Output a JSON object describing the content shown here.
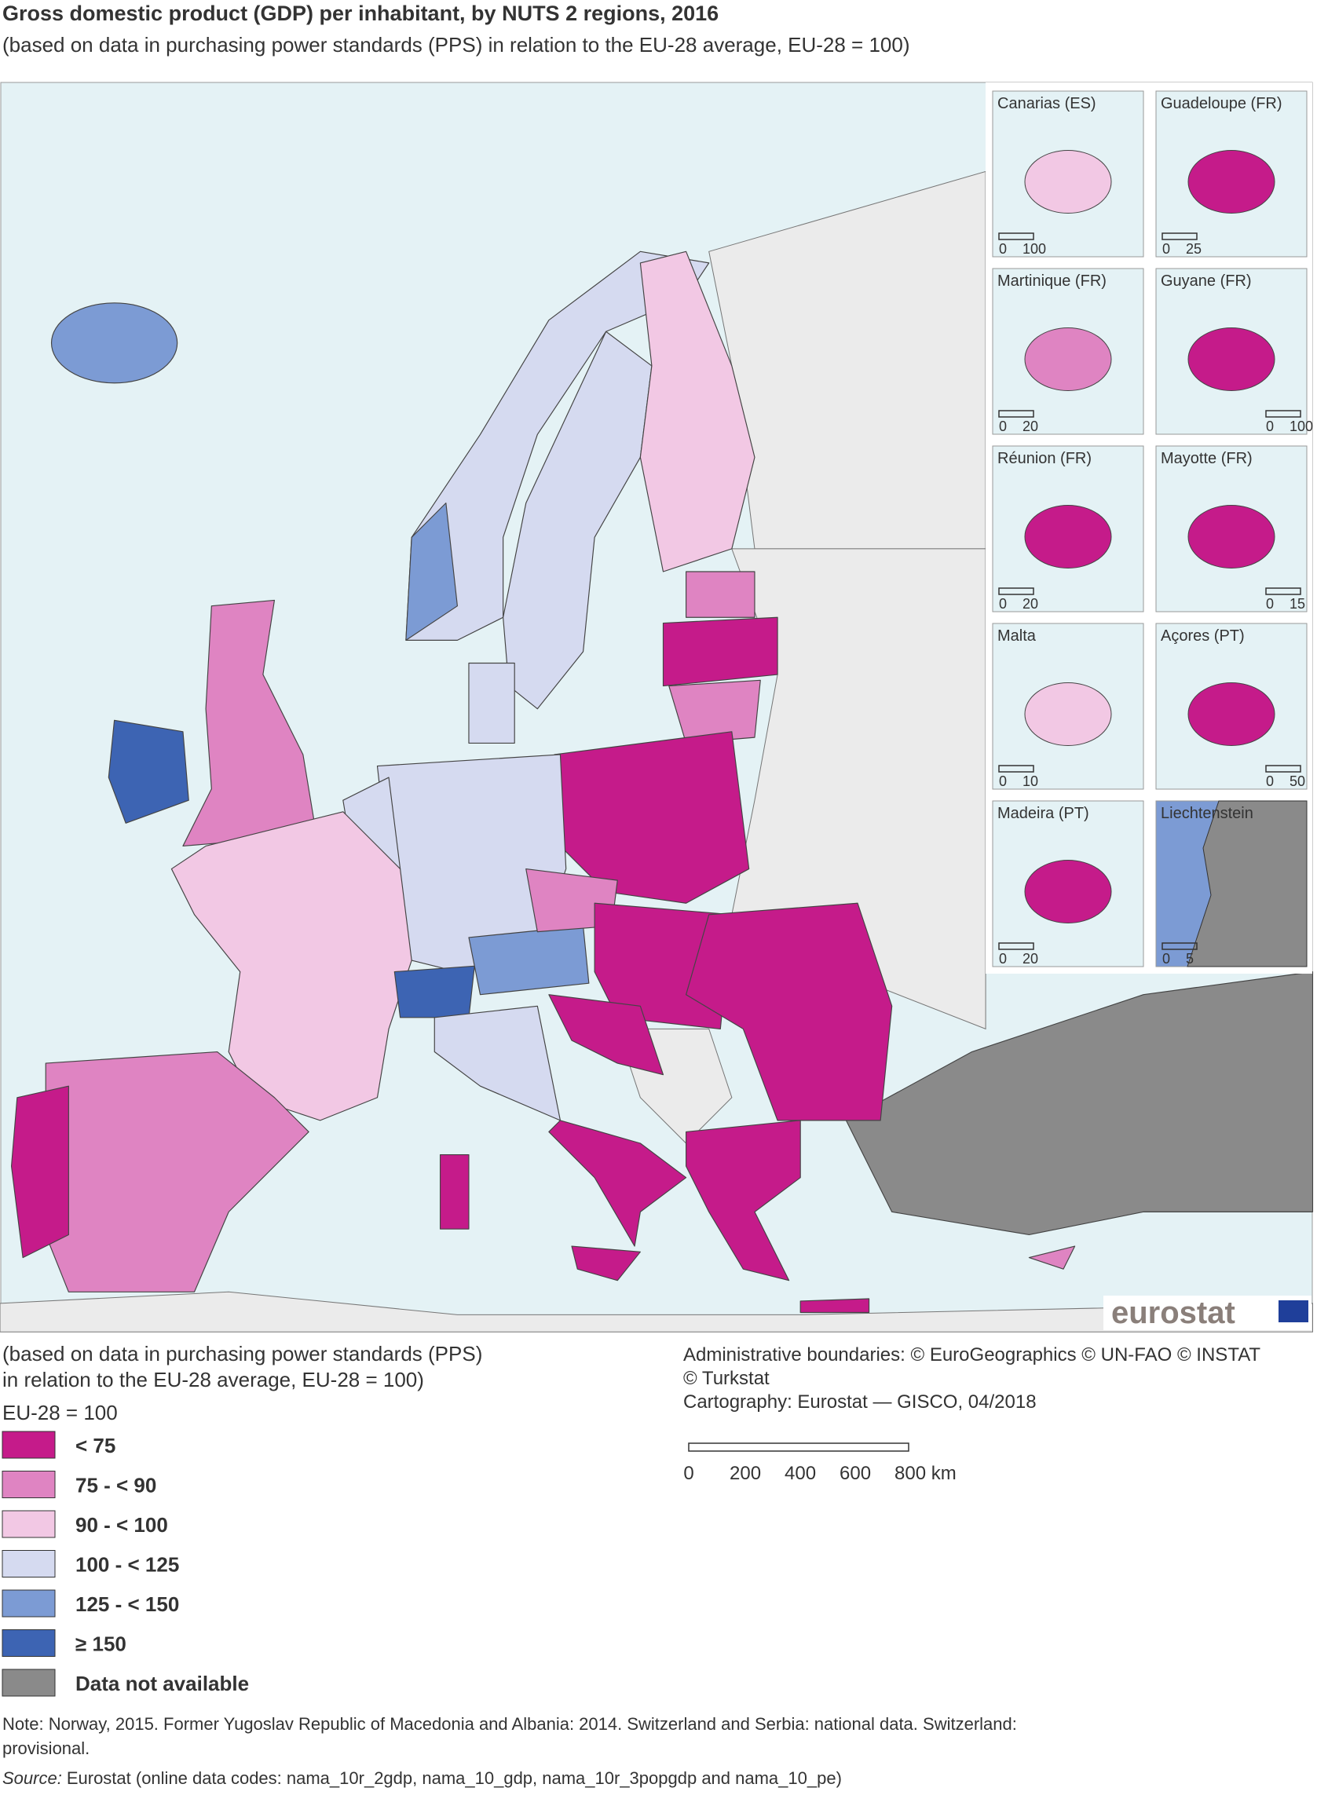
{
  "header": {
    "title": "Gross domestic product (GDP) per inhabitant, by NUTS 2 regions, 2016",
    "subtitle": "(based on data in purchasing power standards (PPS) in relation to the EU-28 average, EU-28 = 100)"
  },
  "insets": [
    {
      "name": "Canarias (ES)",
      "scale": [
        "0",
        "100"
      ]
    },
    {
      "name": "Guadeloupe (FR)",
      "scale": [
        "0",
        "25"
      ]
    },
    {
      "name": "Martinique (FR)",
      "scale": [
        "0",
        "20"
      ]
    },
    {
      "name": "Guyane (FR)",
      "scale": [
        "0",
        "100"
      ]
    },
    {
      "name": "Réunion (FR)",
      "scale": [
        "0",
        "20"
      ]
    },
    {
      "name": "Mayotte (FR)",
      "scale": [
        "0",
        "15"
      ]
    },
    {
      "name": "Malta",
      "scale": [
        "0",
        "10"
      ]
    },
    {
      "name": "Açores (PT)",
      "scale": [
        "0",
        "50"
      ]
    },
    {
      "name": "Madeira (PT)",
      "scale": [
        "0",
        "20"
      ]
    },
    {
      "name": "Liechtenstein",
      "scale": [
        "0",
        "5"
      ]
    }
  ],
  "logo": "eurostat",
  "legend": {
    "caption": [
      "(based on data in purchasing power standards (PPS)",
      "in relation to the EU-28 average, EU-28 = 100)"
    ],
    "title": "EU-28 = 100",
    "items": [
      {
        "label": "< 75",
        "color": "#c51b8a"
      },
      {
        "label": "75 - < 90",
        "color": "#df84c2"
      },
      {
        "label": "90 - < 100",
        "color": "#f2c8e4"
      },
      {
        "label": "100 - < 125",
        "color": "#d5daf0"
      },
      {
        "label": "125 - < 150",
        "color": "#7c9bd4"
      },
      {
        "label": "≥ 150",
        "color": "#3d64b3"
      },
      {
        "label": "Data not available",
        "color": "#8a8a8a"
      }
    ]
  },
  "credits": [
    "Administrative boundaries: © EuroGeographics © UN-FAO © INSTAT",
    "© Turkstat",
    "Cartography: Eurostat — GISCO, 04/2018"
  ],
  "scale_bar": {
    "labels": [
      "0",
      "200",
      "400",
      "600",
      "800 km"
    ]
  },
  "note": [
    "Note: Norway, 2015. Former Yugoslav Republic of Macedonia and Albania: 2014. Switzerland and Serbia: national data. Switzerland:",
    "provisional."
  ],
  "source": {
    "label": "Source:",
    "text": "Eurostat (online data codes: nama_10r_2gdp, nama_10_gdp, nama_10r_3popgdp and nama_10_pe)"
  }
}
